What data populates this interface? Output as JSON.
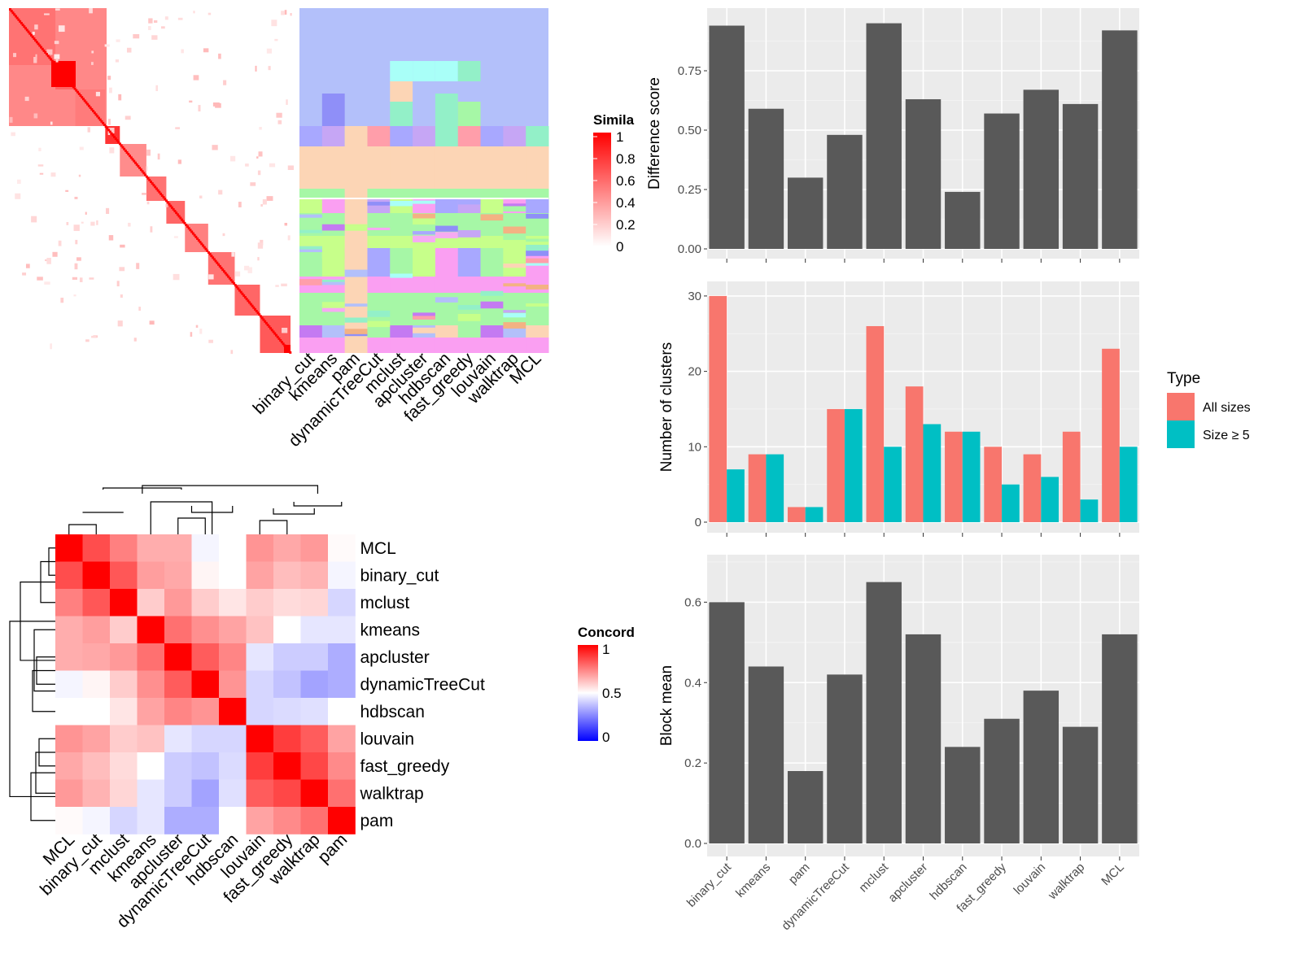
{
  "methods": [
    "binary_cut",
    "kmeans",
    "pam",
    "dynamicTreeCut",
    "mclust",
    "apcluster",
    "hdbscan",
    "fast_greedy",
    "louvain",
    "walktrap",
    "MCL"
  ],
  "colors": {
    "heat_high": "#FF0000",
    "heat_low": "#FFFFFF",
    "concord_low": "#0000FF",
    "bar_dark": "#595959",
    "panel_bg": "#EBEBEB",
    "all_sizes": "#F8766D",
    "size_ge5": "#00BFC4"
  },
  "similarity_legend": {
    "title": "Simila",
    "ticks": [
      "1",
      "0.8",
      "0.6",
      "0.4",
      "0.2",
      "0"
    ]
  },
  "concordance": {
    "order": [
      "MCL",
      "binary_cut",
      "mclust",
      "kmeans",
      "apcluster",
      "dynamicTreeCut",
      "hdbscan",
      "louvain",
      "fast_greedy",
      "walktrap",
      "pam"
    ],
    "matrix": [
      [
        1.0,
        0.85,
        0.75,
        0.66,
        0.66,
        0.48,
        0.5,
        0.71,
        0.67,
        0.7,
        0.51
      ],
      [
        0.85,
        1.0,
        0.83,
        0.69,
        0.67,
        0.52,
        0.5,
        0.68,
        0.63,
        0.65,
        0.48
      ],
      [
        0.75,
        0.83,
        1.0,
        0.6,
        0.7,
        0.6,
        0.55,
        0.6,
        0.57,
        0.58,
        0.42
      ],
      [
        0.66,
        0.69,
        0.6,
        1.0,
        0.78,
        0.72,
        0.68,
        0.62,
        0.5,
        0.45,
        0.45
      ],
      [
        0.66,
        0.67,
        0.7,
        0.78,
        1.0,
        0.82,
        0.74,
        0.45,
        0.4,
        0.4,
        0.34
      ],
      [
        0.48,
        0.52,
        0.6,
        0.72,
        0.82,
        1.0,
        0.71,
        0.42,
        0.38,
        0.32,
        0.34
      ],
      [
        0.5,
        0.5,
        0.55,
        0.68,
        0.74,
        0.71,
        1.0,
        0.42,
        0.43,
        0.44,
        0.5
      ],
      [
        0.71,
        0.68,
        0.6,
        0.62,
        0.45,
        0.42,
        0.42,
        1.0,
        0.88,
        0.82,
        0.68
      ],
      [
        0.67,
        0.63,
        0.57,
        0.5,
        0.4,
        0.38,
        0.43,
        0.88,
        1.0,
        0.86,
        0.73
      ],
      [
        0.7,
        0.65,
        0.58,
        0.45,
        0.4,
        0.32,
        0.44,
        0.82,
        0.86,
        1.0,
        0.78
      ],
      [
        0.51,
        0.48,
        0.42,
        0.45,
        0.34,
        0.34,
        0.5,
        0.68,
        0.73,
        0.78,
        1.0
      ]
    ],
    "legend_title": "Concord",
    "legend_ticks": [
      "1",
      "0.5",
      "0"
    ]
  },
  "chart_data": [
    {
      "type": "bar",
      "categories": [
        "binary_cut",
        "kmeans",
        "pam",
        "dynamicTreeCut",
        "mclust",
        "apcluster",
        "hdbscan",
        "fast_greedy",
        "louvain",
        "walktrap",
        "MCL"
      ],
      "values": [
        0.94,
        0.59,
        0.3,
        0.48,
        0.95,
        0.63,
        0.24,
        0.57,
        0.67,
        0.61,
        0.92
      ],
      "ylabel": "Difference score",
      "yticks": [
        "0.00",
        "0.25",
        "0.50",
        "0.75"
      ],
      "ylim": [
        0,
        1.0
      ]
    },
    {
      "type": "bar",
      "categories": [
        "binary_cut",
        "kmeans",
        "pam",
        "dynamicTreeCut",
        "mclust",
        "apcluster",
        "hdbscan",
        "fast_greedy",
        "louvain",
        "walktrap",
        "MCL"
      ],
      "series": [
        {
          "name": "All sizes",
          "values": [
            30,
            9,
            2,
            15,
            26,
            18,
            12,
            10,
            9,
            12,
            23
          ]
        },
        {
          "name": "Size ≥ 5",
          "values": [
            7,
            9,
            2,
            15,
            10,
            13,
            12,
            5,
            6,
            3,
            10
          ]
        }
      ],
      "ylabel": "Number of clusters",
      "yticks": [
        "0",
        "10",
        "20",
        "30"
      ],
      "ylim": [
        0,
        31.5
      ],
      "legend_title": "Type"
    },
    {
      "type": "bar",
      "categories": [
        "binary_cut",
        "kmeans",
        "pam",
        "dynamicTreeCut",
        "mclust",
        "apcluster",
        "hdbscan",
        "fast_greedy",
        "louvain",
        "walktrap",
        "MCL"
      ],
      "values": [
        0.6,
        0.44,
        0.18,
        0.42,
        0.65,
        0.52,
        0.24,
        0.31,
        0.38,
        0.29,
        0.52
      ],
      "ylabel": "Block mean",
      "yticks": [
        "0.0",
        "0.2",
        "0.4",
        "0.6"
      ],
      "ylim": [
        0,
        0.71
      ]
    }
  ]
}
